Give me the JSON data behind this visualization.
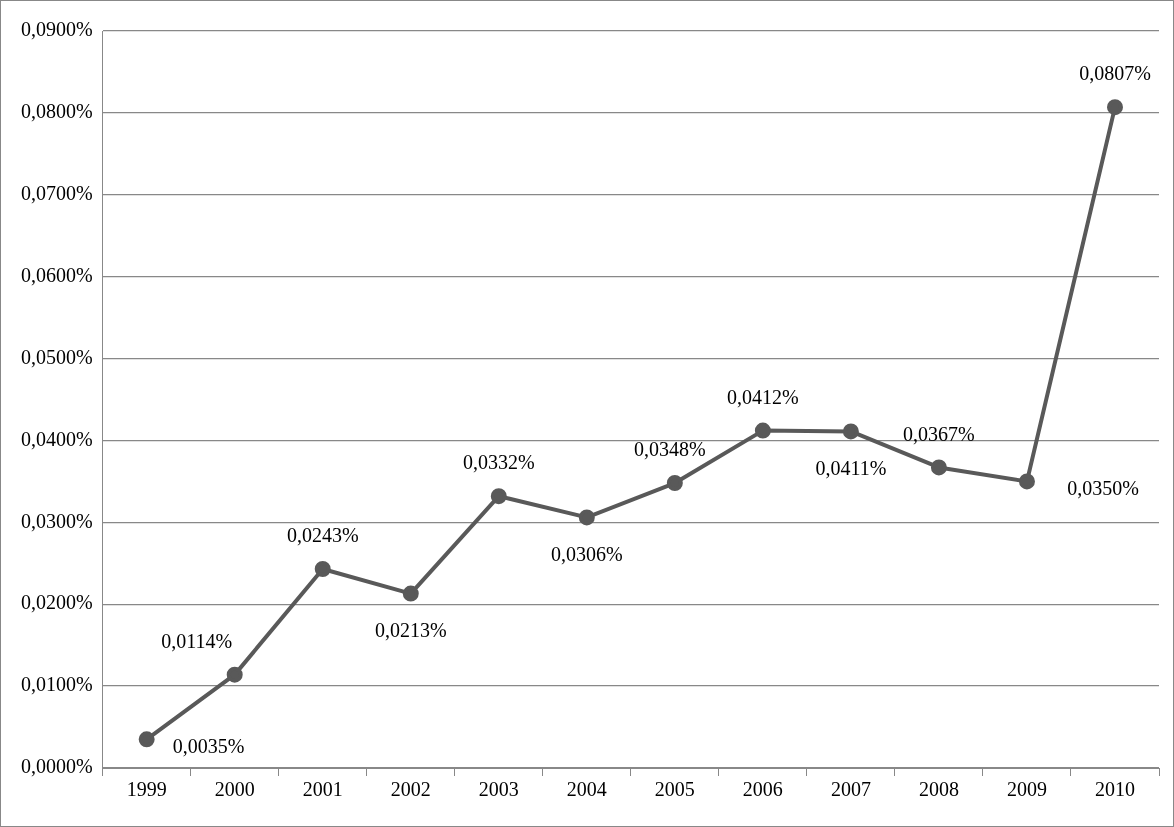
{
  "chart_data": {
    "type": "line",
    "categories": [
      "1999",
      "2000",
      "2001",
      "2002",
      "2003",
      "2004",
      "2005",
      "2006",
      "2007",
      "2008",
      "2009",
      "2010"
    ],
    "series": [
      {
        "color": "#595959",
        "values": [
          0.0035,
          0.0114,
          0.0243,
          0.0213,
          0.0332,
          0.0306,
          0.0348,
          0.0412,
          0.0411,
          0.0367,
          0.035,
          0.0807
        ],
        "value_labels": [
          "0,0035%",
          "0,0114%",
          "0,0243%",
          "0,0213%",
          "0,0332%",
          "0,0306%",
          "0,0348%",
          "0,0412%",
          "0,0411%",
          "0,0367%",
          "0,0350%",
          "0,0807%"
        ]
      }
    ],
    "ylim": [
      0,
      0.09
    ],
    "yticks": [
      {
        "value": 0,
        "label": "0,0000%"
      },
      {
        "value": 0.01,
        "label": "0,0100%"
      },
      {
        "value": 0.02,
        "label": "0,0200%"
      },
      {
        "value": 0.03,
        "label": "0,0300%"
      },
      {
        "value": 0.04,
        "label": "0,0400%"
      },
      {
        "value": 0.05,
        "label": "0,0500%"
      },
      {
        "value": 0.06,
        "label": "0,0600%"
      },
      {
        "value": 0.07,
        "label": "0,0700%"
      },
      {
        "value": 0.08,
        "label": "0,0800%"
      },
      {
        "value": 0.09,
        "label": "0,0900%"
      }
    ],
    "grid": "y",
    "legend": false,
    "marker": "circle",
    "line_style": "solid"
  }
}
